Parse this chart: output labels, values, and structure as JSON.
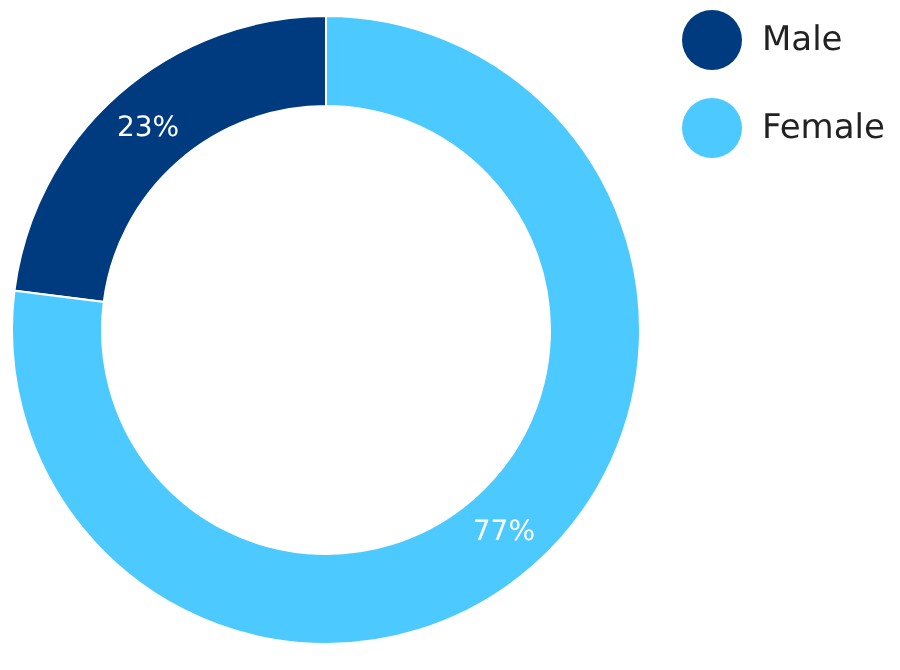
{
  "chart_data": {
    "type": "donut",
    "categories": [
      "Male",
      "Female"
    ],
    "values": [
      23,
      77
    ],
    "colors": [
      "#003b7f",
      "#4cc9fe"
    ],
    "value_labels": [
      "23%",
      "77%"
    ],
    "legend": "right"
  }
}
